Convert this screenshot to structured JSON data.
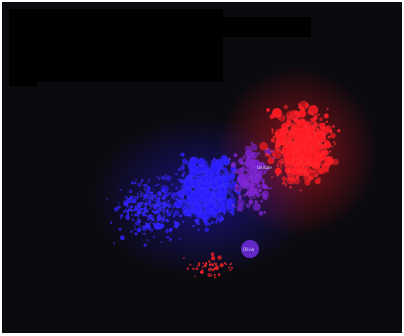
{
  "figure": {
    "background": "#0b0a0f",
    "redaction_color": "#000000",
    "cluster_colors": {
      "blue": "#2a1cff",
      "red": "#ff1a22",
      "mixed": "#7a1fd0"
    },
    "node_labels": [
      "Unisale",
      "Olivia"
    ]
  }
}
